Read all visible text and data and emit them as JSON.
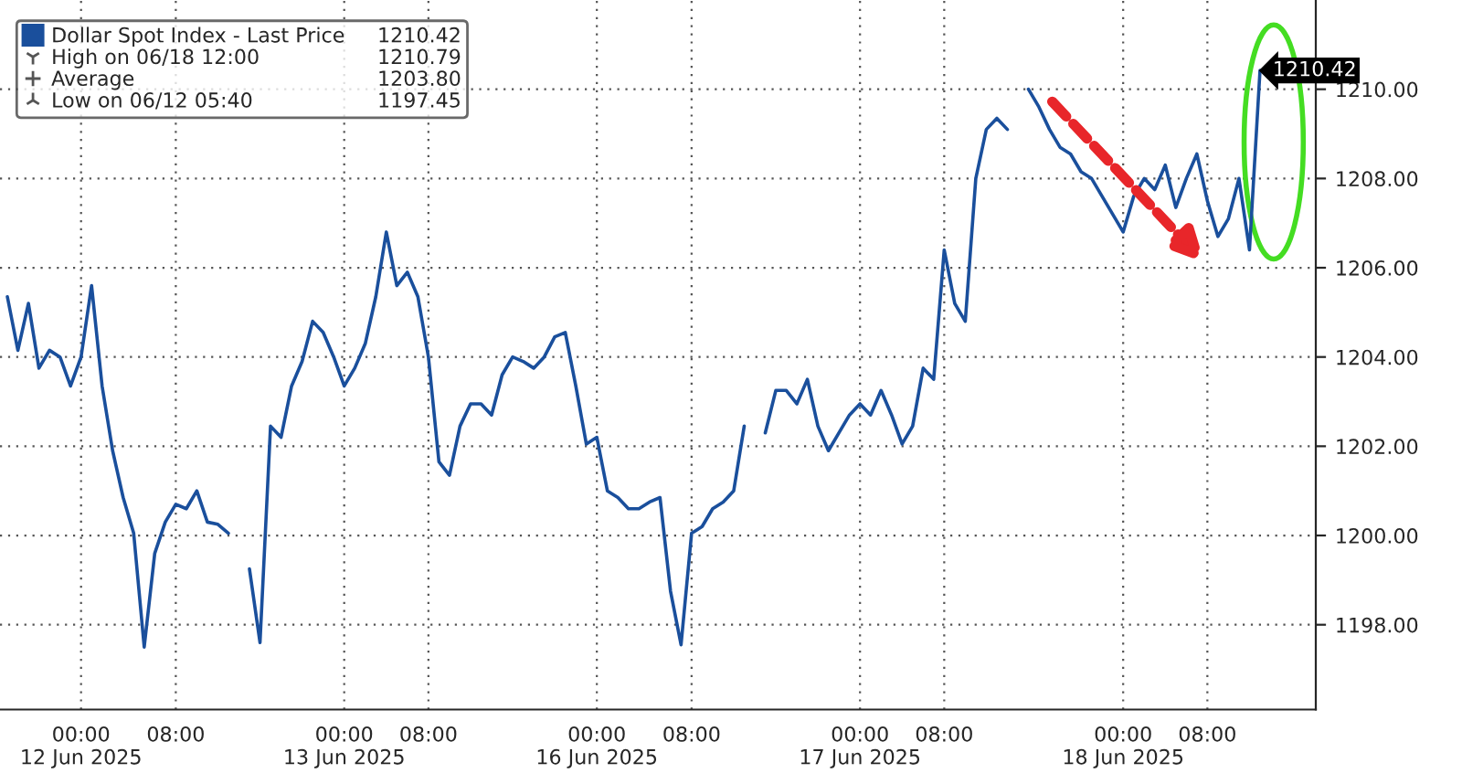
{
  "chart_data": {
    "type": "line",
    "categories": [
      null,
      null,
      null,
      null,
      null,
      null,
      null,
      "00:00\n12 Jun 2025",
      null,
      null,
      null,
      null,
      null,
      null,
      null,
      null,
      "08:00",
      null,
      null,
      null,
      null,
      null,
      null,
      null,
      null,
      null,
      null,
      null,
      null,
      null,
      null,
      null,
      "00:00\n13 Jun 2025",
      null,
      null,
      null,
      null,
      null,
      null,
      null,
      "08:00",
      null,
      null,
      null,
      null,
      null,
      null,
      null,
      null,
      null,
      null,
      null,
      null,
      null,
      null,
      null,
      "00:00\n16 Jun 2025",
      null,
      null,
      null,
      null,
      null,
      null,
      null,
      null,
      "08:00",
      null,
      null,
      null,
      null,
      null,
      null,
      null,
      null,
      null,
      null,
      null,
      null,
      null,
      null,
      null,
      "00:00\n17 Jun 2025",
      null,
      null,
      null,
      null,
      null,
      null,
      null,
      "08:00",
      null,
      null,
      null,
      null,
      null,
      null,
      null,
      null,
      null,
      null,
      null,
      null,
      null,
      null,
      null,
      null,
      "00:00\n18 Jun 2025",
      null,
      null,
      null,
      null,
      null,
      null,
      null,
      "08:00",
      null,
      null,
      null,
      null,
      null
    ],
    "series": [
      {
        "name": "Dollar Spot Index - Last Price",
        "color": "#1a4f9c",
        "values": [
          1205.35,
          1204.15,
          1205.2,
          1203.75,
          1204.15,
          1204.0,
          1203.35,
          1204.0,
          1205.6,
          1203.35,
          1201.9,
          1200.85,
          1200.05,
          1197.5,
          1199.6,
          1200.3,
          1200.7,
          1200.6,
          1201.0,
          1200.3,
          1200.25,
          1200.05,
          null,
          1199.25,
          1197.6,
          1202.45,
          1202.2,
          1203.35,
          1203.9,
          1204.8,
          1204.55,
          1204.0,
          1203.35,
          1203.75,
          1204.3,
          1205.35,
          1206.8,
          1205.6,
          1205.9,
          1205.35,
          1204.0,
          1201.65,
          1201.35,
          1202.45,
          1202.95,
          1202.95,
          1202.7,
          1203.6,
          1204.0,
          1203.9,
          1203.75,
          1204.0,
          1204.45,
          1204.55,
          1203.35,
          1202.05,
          1202.2,
          1201.0,
          1200.85,
          1200.6,
          1200.6,
          1200.75,
          1200.85,
          1198.75,
          1197.55,
          1200.05,
          1200.2,
          1200.6,
          1200.75,
          1201.0,
          1202.45,
          null,
          1202.3,
          1203.25,
          1203.25,
          1202.95,
          1203.5,
          1202.45,
          1201.9,
          1202.3,
          1202.7,
          1202.95,
          1202.7,
          1203.25,
          1202.7,
          1202.05,
          1202.45,
          1203.75,
          1203.5,
          1206.4,
          1205.2,
          1204.8,
          1208.0,
          1209.1,
          1209.35,
          1209.1,
          null,
          1210.0,
          1209.6,
          1209.1,
          1208.7,
          1208.55,
          1208.15,
          1208.0,
          1207.6,
          1207.2,
          1206.8,
          1207.6,
          1208.0,
          1207.75,
          1208.3,
          1207.35,
          1208.0,
          1208.55,
          1207.5,
          1206.7,
          1207.1,
          1208.0,
          1206.4,
          1210.42
        ],
        "value_labels": [
          null,
          null,
          null,
          null,
          null,
          null,
          null,
          null,
          null,
          null,
          null,
          null,
          null,
          null,
          null,
          null,
          null,
          null,
          null,
          null,
          null,
          null,
          null,
          null,
          null,
          null,
          null,
          null,
          null,
          null,
          null,
          null,
          null,
          null,
          null,
          null,
          null,
          null,
          null,
          null,
          null,
          null,
          null,
          null,
          null,
          null,
          null,
          null,
          null,
          null,
          null,
          null,
          null,
          null,
          null,
          null,
          null,
          null,
          null,
          null,
          null,
          null,
          null,
          null,
          null,
          null,
          null,
          null,
          null,
          null,
          null,
          null,
          null,
          null,
          null,
          null,
          null,
          null,
          null,
          null,
          null,
          null,
          null,
          null,
          null,
          null,
          null,
          null,
          null,
          null,
          null,
          null,
          null,
          null,
          null,
          null,
          null,
          null,
          null,
          null,
          null,
          null,
          null,
          null,
          null,
          null,
          null,
          null,
          null,
          null,
          null,
          null,
          null,
          null,
          null,
          null,
          null,
          null,
          null,
          "1210.42"
        ]
      }
    ],
    "ylim": [
      1196.1,
      1212.0
    ],
    "yticks": [
      {
        "value": 1198,
        "label": "1198.00"
      },
      {
        "value": 1200,
        "label": "1200.00"
      },
      {
        "value": 1202,
        "label": "1202.00"
      },
      {
        "value": 1204,
        "label": "1204.00"
      },
      {
        "value": 1206,
        "label": "1206.00"
      },
      {
        "value": 1208,
        "label": "1208.00"
      },
      {
        "value": 1210,
        "label": "1210.00"
      }
    ],
    "annotations": [
      "High on 06/18 12:00",
      "Average",
      "Low on 06/12 05:40",
      "1210.42",
      "1210.79",
      "1203.80",
      "1197.45"
    ],
    "grid": true,
    "legend": "top left",
    "marker": "none",
    "line_style": "solid"
  }
}
